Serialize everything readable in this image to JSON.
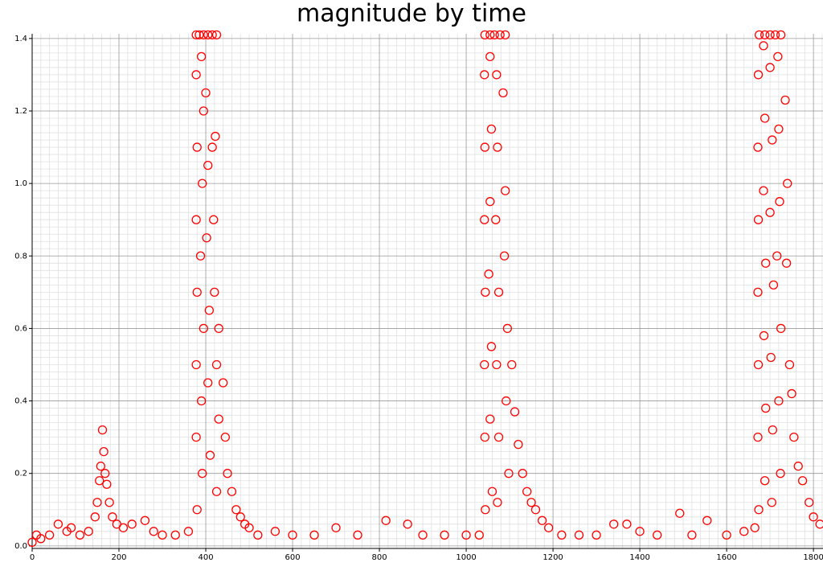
{
  "chart_data": {
    "type": "scatter",
    "title": "magnitude by time",
    "xlim": [
      0,
      1822
    ],
    "ylim": [
      -0.007,
      1.413
    ],
    "xticks": [
      0,
      200,
      400,
      600,
      800,
      1000,
      1200,
      1400,
      1600,
      1800
    ],
    "yticks": [
      {
        "value": 0,
        "label": "0.0"
      },
      0.2,
      0.4,
      0.6,
      0.8,
      {
        "value": 1,
        "label": "1.0"
      },
      1.2,
      1.4
    ],
    "grid": true,
    "minor_grid_divisions": 10,
    "series": [
      {
        "color": "#ff0000",
        "x": [
          0,
          10,
          20,
          40,
          60,
          80,
          90,
          110,
          130,
          145,
          150,
          155,
          158,
          162,
          165,
          168,
          172,
          178,
          185,
          195,
          210,
          230,
          260,
          280,
          300,
          330,
          360,
          378,
          385,
          395,
          405,
          415,
          425,
          378,
          380,
          378,
          380,
          378,
          378,
          380,
          390,
          395,
          392,
          388,
          395,
          390,
          392,
          400,
          405,
          402,
          408,
          405,
          410,
          415,
          418,
          420,
          425,
          430,
          425,
          422,
          430,
          440,
          445,
          450,
          460,
          470,
          480,
          490,
          500,
          520,
          560,
          600,
          650,
          700,
          750,
          815,
          865,
          900,
          950,
          1000,
          1030,
          1043,
          1055,
          1065,
          1078,
          1090,
          1042,
          1043,
          1042,
          1044,
          1042,
          1043,
          1044,
          1055,
          1058,
          1055,
          1052,
          1058,
          1055,
          1060,
          1070,
          1072,
          1068,
          1075,
          1070,
          1075,
          1072,
          1085,
          1090,
          1088,
          1095,
          1092,
          1098,
          1105,
          1112,
          1120,
          1130,
          1140,
          1150,
          1160,
          1175,
          1190,
          1220,
          1260,
          1300,
          1340,
          1370,
          1400,
          1440,
          1492,
          1520,
          1555,
          1600,
          1640,
          1665,
          1675,
          1688,
          1700,
          1712,
          1725,
          1673,
          1672,
          1673,
          1672,
          1673,
          1672,
          1674,
          1685,
          1688,
          1685,
          1690,
          1686,
          1690,
          1688,
          1700,
          1705,
          1700,
          1708,
          1702,
          1706,
          1704,
          1718,
          1720,
          1722,
          1716,
          1725,
          1720,
          1724,
          1735,
          1740,
          1738,
          1745,
          1750,
          1755,
          1765,
          1775,
          1790,
          1800,
          1815
        ],
        "values": [
          0.01,
          0.03,
          0.02,
          0.03,
          0.06,
          0.04,
          0.05,
          0.03,
          0.04,
          0.08,
          0.12,
          0.18,
          0.22,
          0.32,
          0.26,
          0.2,
          0.17,
          0.12,
          0.08,
          0.06,
          0.05,
          0.06,
          0.07,
          0.04,
          0.03,
          0.03,
          0.04,
          1.41,
          1.41,
          1.41,
          1.41,
          1.41,
          1.41,
          1.3,
          1.1,
          0.9,
          0.7,
          0.5,
          0.3,
          0.1,
          1.35,
          1.2,
          1.0,
          0.8,
          0.6,
          0.4,
          0.2,
          1.25,
          1.05,
          0.85,
          0.65,
          0.45,
          0.25,
          1.1,
          0.9,
          0.7,
          0.5,
          0.35,
          0.15,
          1.13,
          0.6,
          0.45,
          0.3,
          0.2,
          0.15,
          0.1,
          0.08,
          0.06,
          0.05,
          0.03,
          0.04,
          0.03,
          0.03,
          0.05,
          0.03,
          0.07,
          0.06,
          0.03,
          0.03,
          0.03,
          0.03,
          1.41,
          1.41,
          1.41,
          1.41,
          1.41,
          1.3,
          1.1,
          0.9,
          0.7,
          0.5,
          0.3,
          0.1,
          1.35,
          1.15,
          0.95,
          0.75,
          0.55,
          0.35,
          0.15,
          1.3,
          1.1,
          0.9,
          0.7,
          0.5,
          0.3,
          0.12,
          1.25,
          0.98,
          0.8,
          0.6,
          0.4,
          0.2,
          0.5,
          0.37,
          0.28,
          0.2,
          0.15,
          0.12,
          0.1,
          0.07,
          0.05,
          0.03,
          0.03,
          0.03,
          0.06,
          0.06,
          0.04,
          0.03,
          0.09,
          0.03,
          0.07,
          0.03,
          0.04,
          0.05,
          1.41,
          1.41,
          1.41,
          1.41,
          1.41,
          1.3,
          1.1,
          0.9,
          0.7,
          0.5,
          0.3,
          0.1,
          1.38,
          1.18,
          0.98,
          0.78,
          0.58,
          0.38,
          0.18,
          1.32,
          1.12,
          0.92,
          0.72,
          0.52,
          0.32,
          0.12,
          1.35,
          1.15,
          0.95,
          0.8,
          0.6,
          0.4,
          0.2,
          1.23,
          1.0,
          0.78,
          0.5,
          0.42,
          0.3,
          0.22,
          0.18,
          0.12,
          0.08,
          0.06
        ]
      }
    ]
  }
}
